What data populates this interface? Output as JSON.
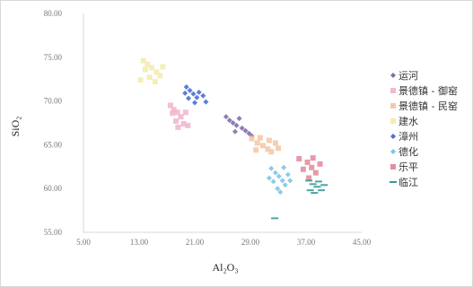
{
  "chart_data": {
    "type": "scatter",
    "title": "",
    "xlabel": "Al₂O₃",
    "ylabel": "SiO₂",
    "xlim": [
      5,
      45
    ],
    "ylim": [
      55,
      80
    ],
    "x_ticks": [
      "5.00",
      "13.00",
      "21.00",
      "29.00",
      "37.00",
      "45.00"
    ],
    "y_ticks": [
      "80.00",
      "75.00",
      "70.00",
      "65.00",
      "60.00",
      "55.00"
    ],
    "grid": false,
    "legend_position": "right",
    "series": [
      {
        "name": "运河",
        "color": "#7f6fb0",
        "marker": "diamond",
        "points": [
          [
            26.5,
            67.5
          ],
          [
            27.0,
            67.2
          ],
          [
            27.8,
            66.9
          ],
          [
            28.3,
            66.6
          ],
          [
            26.0,
            67.8
          ],
          [
            25.5,
            68.2
          ],
          [
            28.8,
            66.3
          ],
          [
            27.4,
            68.0
          ],
          [
            29.2,
            66.0
          ],
          [
            26.8,
            66.5
          ]
        ]
      },
      {
        "name": "景德镇 - 御窑",
        "color": "#f2b8cf",
        "marker": "square",
        "points": [
          [
            17.5,
            69.5
          ],
          [
            18.0,
            69.0
          ],
          [
            18.5,
            68.7
          ],
          [
            19.0,
            68.2
          ],
          [
            18.3,
            67.7
          ],
          [
            19.4,
            67.4
          ],
          [
            17.8,
            68.6
          ],
          [
            20.0,
            67.2
          ],
          [
            19.7,
            68.7
          ],
          [
            18.6,
            67.0
          ]
        ]
      },
      {
        "name": "景德镇 - 民窑",
        "color": "#f5c9a8",
        "marker": "square",
        "points": [
          [
            29.2,
            65.7
          ],
          [
            30.0,
            65.2
          ],
          [
            30.8,
            64.9
          ],
          [
            31.5,
            64.5
          ],
          [
            32.0,
            64.2
          ],
          [
            30.4,
            65.8
          ],
          [
            31.7,
            65.5
          ],
          [
            33.0,
            64.6
          ],
          [
            32.6,
            65.2
          ],
          [
            29.8,
            64.4
          ]
        ]
      },
      {
        "name": "建水",
        "color": "#f3ecb0",
        "marker": "square",
        "points": [
          [
            13.6,
            74.6
          ],
          [
            14.2,
            74.2
          ],
          [
            14.8,
            73.8
          ],
          [
            15.5,
            73.3
          ],
          [
            16.0,
            72.9
          ],
          [
            14.5,
            72.7
          ],
          [
            15.3,
            72.2
          ],
          [
            13.9,
            73.6
          ],
          [
            16.4,
            73.9
          ],
          [
            13.2,
            72.4
          ]
        ]
      },
      {
        "name": "漳州",
        "color": "#4a6fd6",
        "marker": "diamond",
        "points": [
          [
            19.8,
            71.6
          ],
          [
            20.3,
            71.2
          ],
          [
            20.8,
            70.8
          ],
          [
            21.3,
            70.4
          ],
          [
            20.1,
            70.3
          ],
          [
            21.6,
            71.0
          ],
          [
            22.2,
            70.6
          ],
          [
            19.6,
            70.9
          ],
          [
            21.0,
            69.8
          ],
          [
            22.6,
            69.9
          ]
        ]
      },
      {
        "name": "德化",
        "color": "#7fc4e6",
        "marker": "diamond",
        "points": [
          [
            32.0,
            62.3
          ],
          [
            32.6,
            61.8
          ],
          [
            33.1,
            61.4
          ],
          [
            33.6,
            60.9
          ],
          [
            34.0,
            60.4
          ],
          [
            32.3,
            60.8
          ],
          [
            33.8,
            62.4
          ],
          [
            34.4,
            61.6
          ],
          [
            32.9,
            60.0
          ],
          [
            34.7,
            60.9
          ],
          [
            31.7,
            61.2
          ],
          [
            33.3,
            59.6
          ]
        ]
      },
      {
        "name": "乐平",
        "color": "#e48fa0",
        "marker": "square",
        "points": [
          [
            36.0,
            63.4
          ],
          [
            37.2,
            63.0
          ],
          [
            37.8,
            62.4
          ],
          [
            38.4,
            61.8
          ],
          [
            36.6,
            62.2
          ],
          [
            39.0,
            62.8
          ],
          [
            38.0,
            63.5
          ],
          [
            37.4,
            61.2
          ]
        ]
      },
      {
        "name": "临江",
        "color": "#3a9a9a",
        "marker": "dash",
        "points": [
          [
            37.4,
            60.9
          ],
          [
            38.0,
            60.5
          ],
          [
            38.6,
            60.2
          ],
          [
            39.2,
            59.8
          ],
          [
            38.8,
            60.8
          ],
          [
            37.6,
            59.8
          ],
          [
            39.6,
            60.4
          ],
          [
            38.2,
            59.5
          ],
          [
            32.5,
            56.6
          ]
        ]
      }
    ]
  }
}
